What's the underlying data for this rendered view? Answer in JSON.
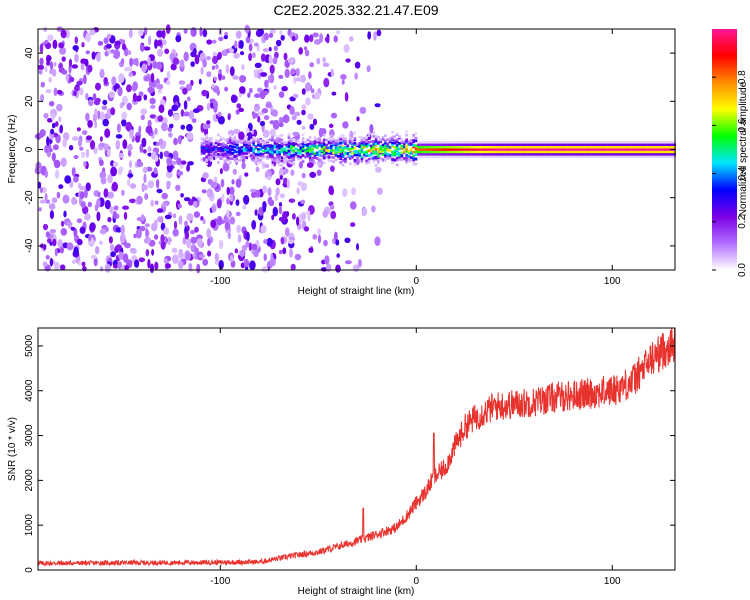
{
  "figure_title": "C2E2.2025.332.21.47.E09",
  "chart_data": [
    {
      "type": "heatmap",
      "title": "",
      "xlabel": "Height of straight line (km)",
      "ylabel": "Frequency (Hz)",
      "xlim": [
        -193,
        132
      ],
      "ylim": [
        -50,
        50
      ],
      "xticks": [
        -100,
        0,
        100
      ],
      "xtick_labels": [
        "-100",
        "0",
        "100"
      ],
      "yticks": [
        40,
        20,
        0,
        -20,
        -40
      ],
      "ytick_labels": [
        "40",
        "20",
        "0",
        "-20",
        "-40"
      ],
      "colorbar": {
        "label": "Normalized spectral amplitude",
        "range": [
          0,
          1
        ],
        "ticks": [
          0.0,
          0.2,
          0.4,
          0.6,
          0.8
        ],
        "tick_labels": [
          "0.0",
          "0.2",
          "0.4",
          "0.6",
          "0.8"
        ],
        "colors": [
          "#ffffff",
          "#b06dff",
          "#7a00e6",
          "#0000ff",
          "#00e5ff",
          "#00ff00",
          "#ffff00",
          "#ff8c00",
          "#ff0000",
          "#ff1493"
        ]
      },
      "features": [
        {
          "name": "noise-region",
          "x_range": [
            -193,
            -35
          ],
          "freq_range": [
            -50,
            50
          ],
          "amplitude": 0.15
        },
        {
          "name": "signal-band",
          "x_range": [
            -110,
            132
          ],
          "center_freq": 0,
          "amplitude_start": 0.35,
          "amplitude_end": 1.0
        }
      ]
    },
    {
      "type": "line",
      "title": "",
      "xlabel": "Height of straight line (km)",
      "ylabel": "SNR (10 * v/v)",
      "xlim": [
        -193,
        132
      ],
      "ylim": [
        0,
        5400
      ],
      "xticks": [
        -100,
        0,
        100
      ],
      "xtick_labels": [
        "-100",
        "0",
        "100"
      ],
      "yticks": [
        0,
        1000,
        2000,
        3000,
        4000,
        5000
      ],
      "ytick_labels": [
        "0",
        "1000",
        "2000",
        "3000",
        "4000",
        "5000"
      ],
      "series": [
        {
          "name": "SNR",
          "color": "#e8322e",
          "x": [
            -193,
            -150,
            -100,
            -80,
            -70,
            -60,
            -50,
            -40,
            -30,
            -25,
            -20,
            -10,
            -5,
            0,
            5,
            8,
            10,
            15,
            20,
            25,
            30,
            40,
            50,
            60,
            70,
            80,
            90,
            100,
            110,
            120,
            132
          ],
          "y": [
            150,
            160,
            170,
            180,
            260,
            340,
            400,
            520,
            650,
            720,
            800,
            950,
            1200,
            1500,
            1750,
            2000,
            2100,
            2300,
            2800,
            3200,
            3400,
            3650,
            3700,
            3750,
            3850,
            3900,
            3950,
            4000,
            4200,
            4700,
            5100
          ],
          "spikes": [
            {
              "x": -27,
              "y": 1380
            },
            {
              "x": 9,
              "y": 3050
            }
          ]
        }
      ]
    }
  ]
}
